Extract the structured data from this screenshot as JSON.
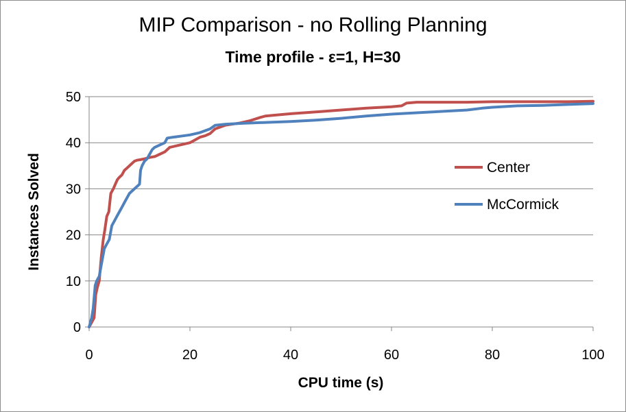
{
  "chart_data": {
    "type": "line",
    "title": "MIP Comparison - no Rolling Planning",
    "subtitle": "Time profile - ε=1, H=30",
    "xlabel": "CPU time (s)",
    "ylabel": "Instances Solved",
    "xlim": [
      0,
      100
    ],
    "ylim": [
      0,
      50
    ],
    "xticks": [
      0,
      20,
      40,
      60,
      80,
      100
    ],
    "yticks": [
      0,
      10,
      20,
      30,
      40,
      50
    ],
    "grid": "horizontal",
    "legend_position": "right",
    "series": [
      {
        "name": "Center",
        "color": "#c0504d",
        "x": [
          0,
          0.5,
          1,
          1.3,
          1.6,
          2,
          2.4,
          2.8,
          3.1,
          3.5,
          3.9,
          4.3,
          4.8,
          5.2,
          5.6,
          6,
          6.5,
          7,
          7.5,
          8,
          8.5,
          9,
          9.5,
          10,
          11,
          12,
          13,
          14,
          15,
          16,
          18,
          20,
          22,
          23,
          24,
          25,
          27,
          30,
          32,
          34,
          35,
          37,
          40,
          45,
          50,
          55,
          60,
          62,
          63,
          65,
          70,
          75,
          80,
          85,
          90,
          95,
          100
        ],
        "y": [
          0,
          1,
          2,
          7,
          8.5,
          10,
          15,
          19,
          21,
          24,
          25,
          29,
          30,
          31,
          32,
          32.5,
          33,
          34,
          34.5,
          35,
          35.5,
          36,
          36.2,
          36.3,
          36.5,
          36.8,
          37,
          37.5,
          38,
          39,
          39.5,
          40,
          41.2,
          41.5,
          42,
          43,
          43.8,
          44.3,
          44.8,
          45.5,
          45.8,
          46,
          46.3,
          46.7,
          47.1,
          47.5,
          47.8,
          48,
          48.6,
          48.8,
          48.8,
          48.8,
          48.9,
          48.9,
          48.9,
          48.9,
          49
        ]
      },
      {
        "name": "McCormick",
        "color": "#4f81bd",
        "x": [
          0,
          0.5,
          0.8,
          1.2,
          1.5,
          2,
          2.5,
          3,
          3.5,
          4,
          4.5,
          5,
          5.5,
          6,
          6.5,
          7,
          7.5,
          8,
          9,
          10,
          10.2,
          10.5,
          11,
          11.5,
          12,
          12.5,
          13,
          14,
          15,
          15.5,
          16,
          18,
          20,
          22,
          24,
          25,
          27,
          30,
          35,
          40,
          45,
          50,
          55,
          60,
          65,
          70,
          75,
          78,
          80,
          85,
          90,
          95,
          100
        ],
        "y": [
          0,
          2,
          4,
          9,
          10,
          11,
          14,
          17,
          18,
          19,
          22,
          23,
          24,
          25,
          26,
          27,
          28,
          29,
          30,
          31,
          34,
          35,
          36,
          36.5,
          37.5,
          38.5,
          39,
          39.5,
          40,
          41,
          41.1,
          41.4,
          41.7,
          42.2,
          43,
          43.8,
          44,
          44.2,
          44.4,
          44.6,
          44.9,
          45.3,
          45.8,
          46.2,
          46.5,
          46.8,
          47.1,
          47.5,
          47.7,
          48,
          48.1,
          48.3,
          48.5
        ]
      }
    ]
  }
}
